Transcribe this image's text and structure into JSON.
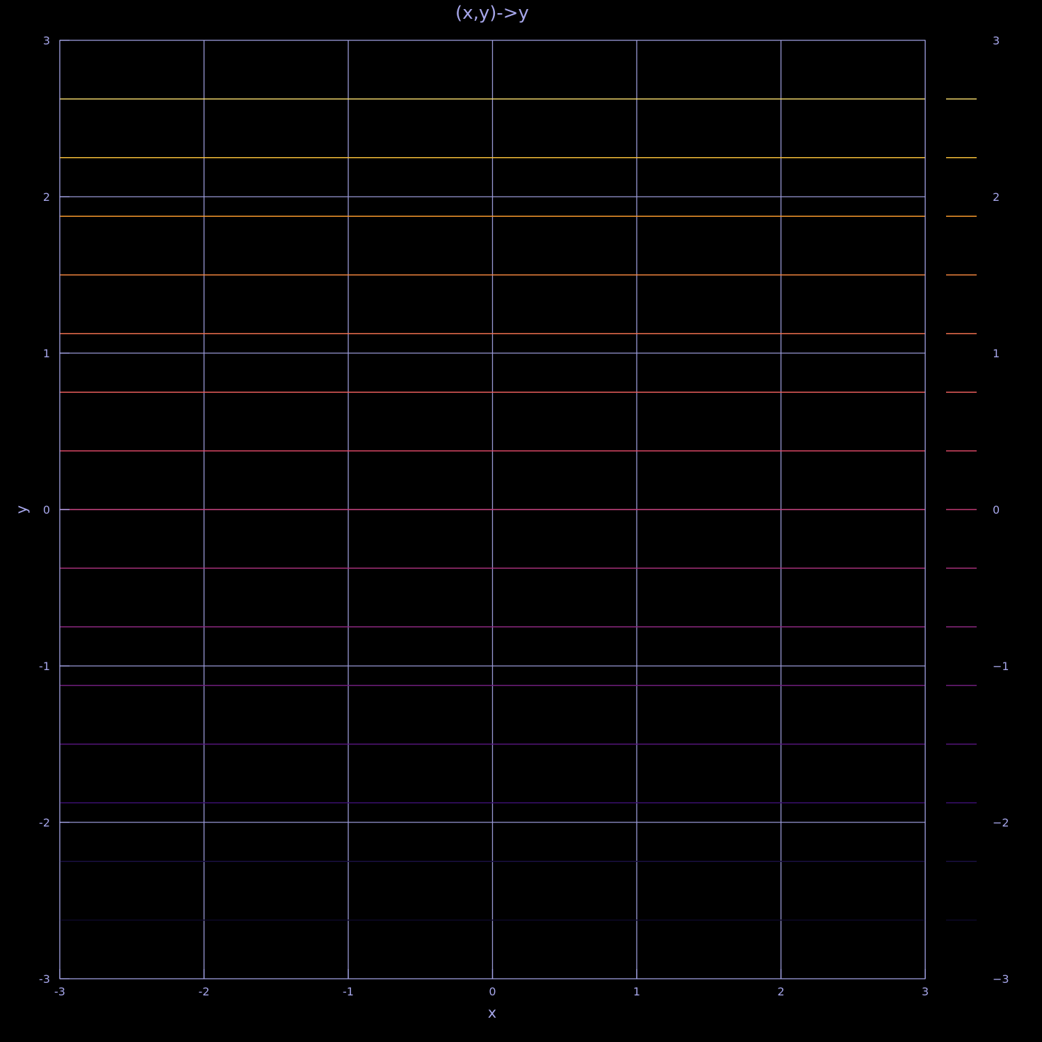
{
  "chart_data": {
    "type": "contour",
    "title": "(x,y)->y",
    "xlabel": "x",
    "ylabel": "y",
    "xlim": [
      -3,
      3
    ],
    "ylim": [
      -3,
      3
    ],
    "x_ticks": [
      "-3",
      "-2",
      "-1",
      "0",
      "1",
      "2",
      "3"
    ],
    "y_ticks": [
      "-3",
      "-2",
      "-1",
      "0",
      "1",
      "2",
      "3"
    ],
    "colorbar_ticks": [
      "−3",
      "−2",
      "−1",
      "0",
      "1",
      "2",
      "3"
    ],
    "grid": true,
    "contour_levels": [
      {
        "value": -2.625,
        "color": "#0d0829"
      },
      {
        "value": -2.25,
        "color": "#1a1042"
      },
      {
        "value": -1.875,
        "color": "#3b0f70"
      },
      {
        "value": -1.5,
        "color": "#57157e"
      },
      {
        "value": -1.125,
        "color": "#721f81"
      },
      {
        "value": -0.75,
        "color": "#8c2981"
      },
      {
        "value": -0.375,
        "color": "#a8327d"
      },
      {
        "value": 0,
        "color": "#c23b75"
      },
      {
        "value": 0.375,
        "color": "#de4968"
      },
      {
        "value": 0.75,
        "color": "#e95e5c"
      },
      {
        "value": 1.125,
        "color": "#f1714f"
      },
      {
        "value": 1.5,
        "color": "#f7883f"
      },
      {
        "value": 1.875,
        "color": "#fb9b2e"
      },
      {
        "value": 2.25,
        "color": "#f7c03a"
      },
      {
        "value": 2.625,
        "color": "#f2d86b"
      }
    ],
    "colors": {
      "background": "#000000",
      "axis": "#a6a6ea",
      "grid": "#9a9ad8"
    }
  }
}
